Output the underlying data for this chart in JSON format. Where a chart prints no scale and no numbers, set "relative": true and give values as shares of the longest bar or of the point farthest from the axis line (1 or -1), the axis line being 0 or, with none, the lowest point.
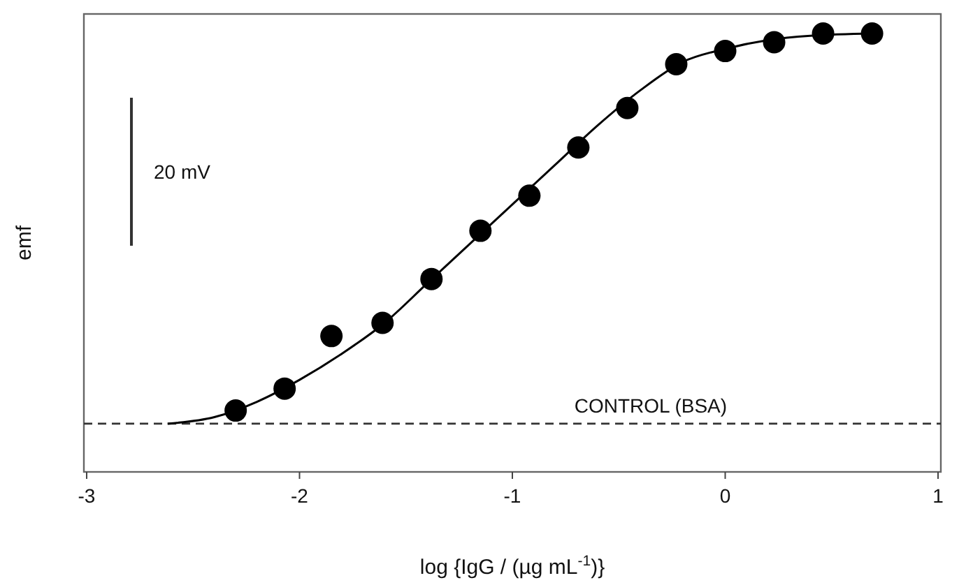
{
  "chart_data": {
    "type": "scatter",
    "relative": true,
    "xlabel": "log {IgG / (µg mL$^{-1}$)}",
    "ylabel": "emf",
    "xlim": [
      -3,
      1
    ],
    "xticks": [
      -3,
      -2,
      -1,
      0,
      1
    ],
    "tick_labels": "x",
    "grid": false,
    "annotations": [
      "20 mV"
    ],
    "ref_lines": [
      {
        "axis": "y",
        "value": 0.11,
        "label": "CONTROL (BSA)",
        "line_style": "dashed",
        "color": "#333333"
      }
    ],
    "series": [
      {
        "type": "scatter",
        "color": "#000000",
        "marker": "circle",
        "x": [
          -2.3,
          -2.07,
          -1.85,
          -1.61,
          -1.38,
          -1.15,
          -0.92,
          -0.69,
          -0.46,
          -0.23,
          0,
          0.23,
          0.46,
          0.69
        ],
        "values": [
          0.14,
          0.19,
          0.31,
          0.34,
          0.44,
          0.55,
          0.63,
          0.74,
          0.83,
          0.93,
          0.96,
          0.98,
          1,
          1
        ]
      },
      {
        "type": "line",
        "color": "#000000",
        "marker": "none",
        "line_style": "solid",
        "x": [
          -2.62,
          -2.4,
          -2.2,
          -2.0,
          -1.8,
          -1.6,
          -1.4,
          -1.2,
          -1.0,
          -0.8,
          -0.6,
          -0.4,
          -0.2,
          0,
          0.2,
          0.4,
          0.7
        ],
        "values": [
          0.11,
          0.125,
          0.16,
          0.21,
          0.27,
          0.34,
          0.43,
          0.52,
          0.61,
          0.7,
          0.79,
          0.87,
          0.935,
          0.965,
          0.985,
          0.995,
          1
        ]
      }
    ]
  }
}
